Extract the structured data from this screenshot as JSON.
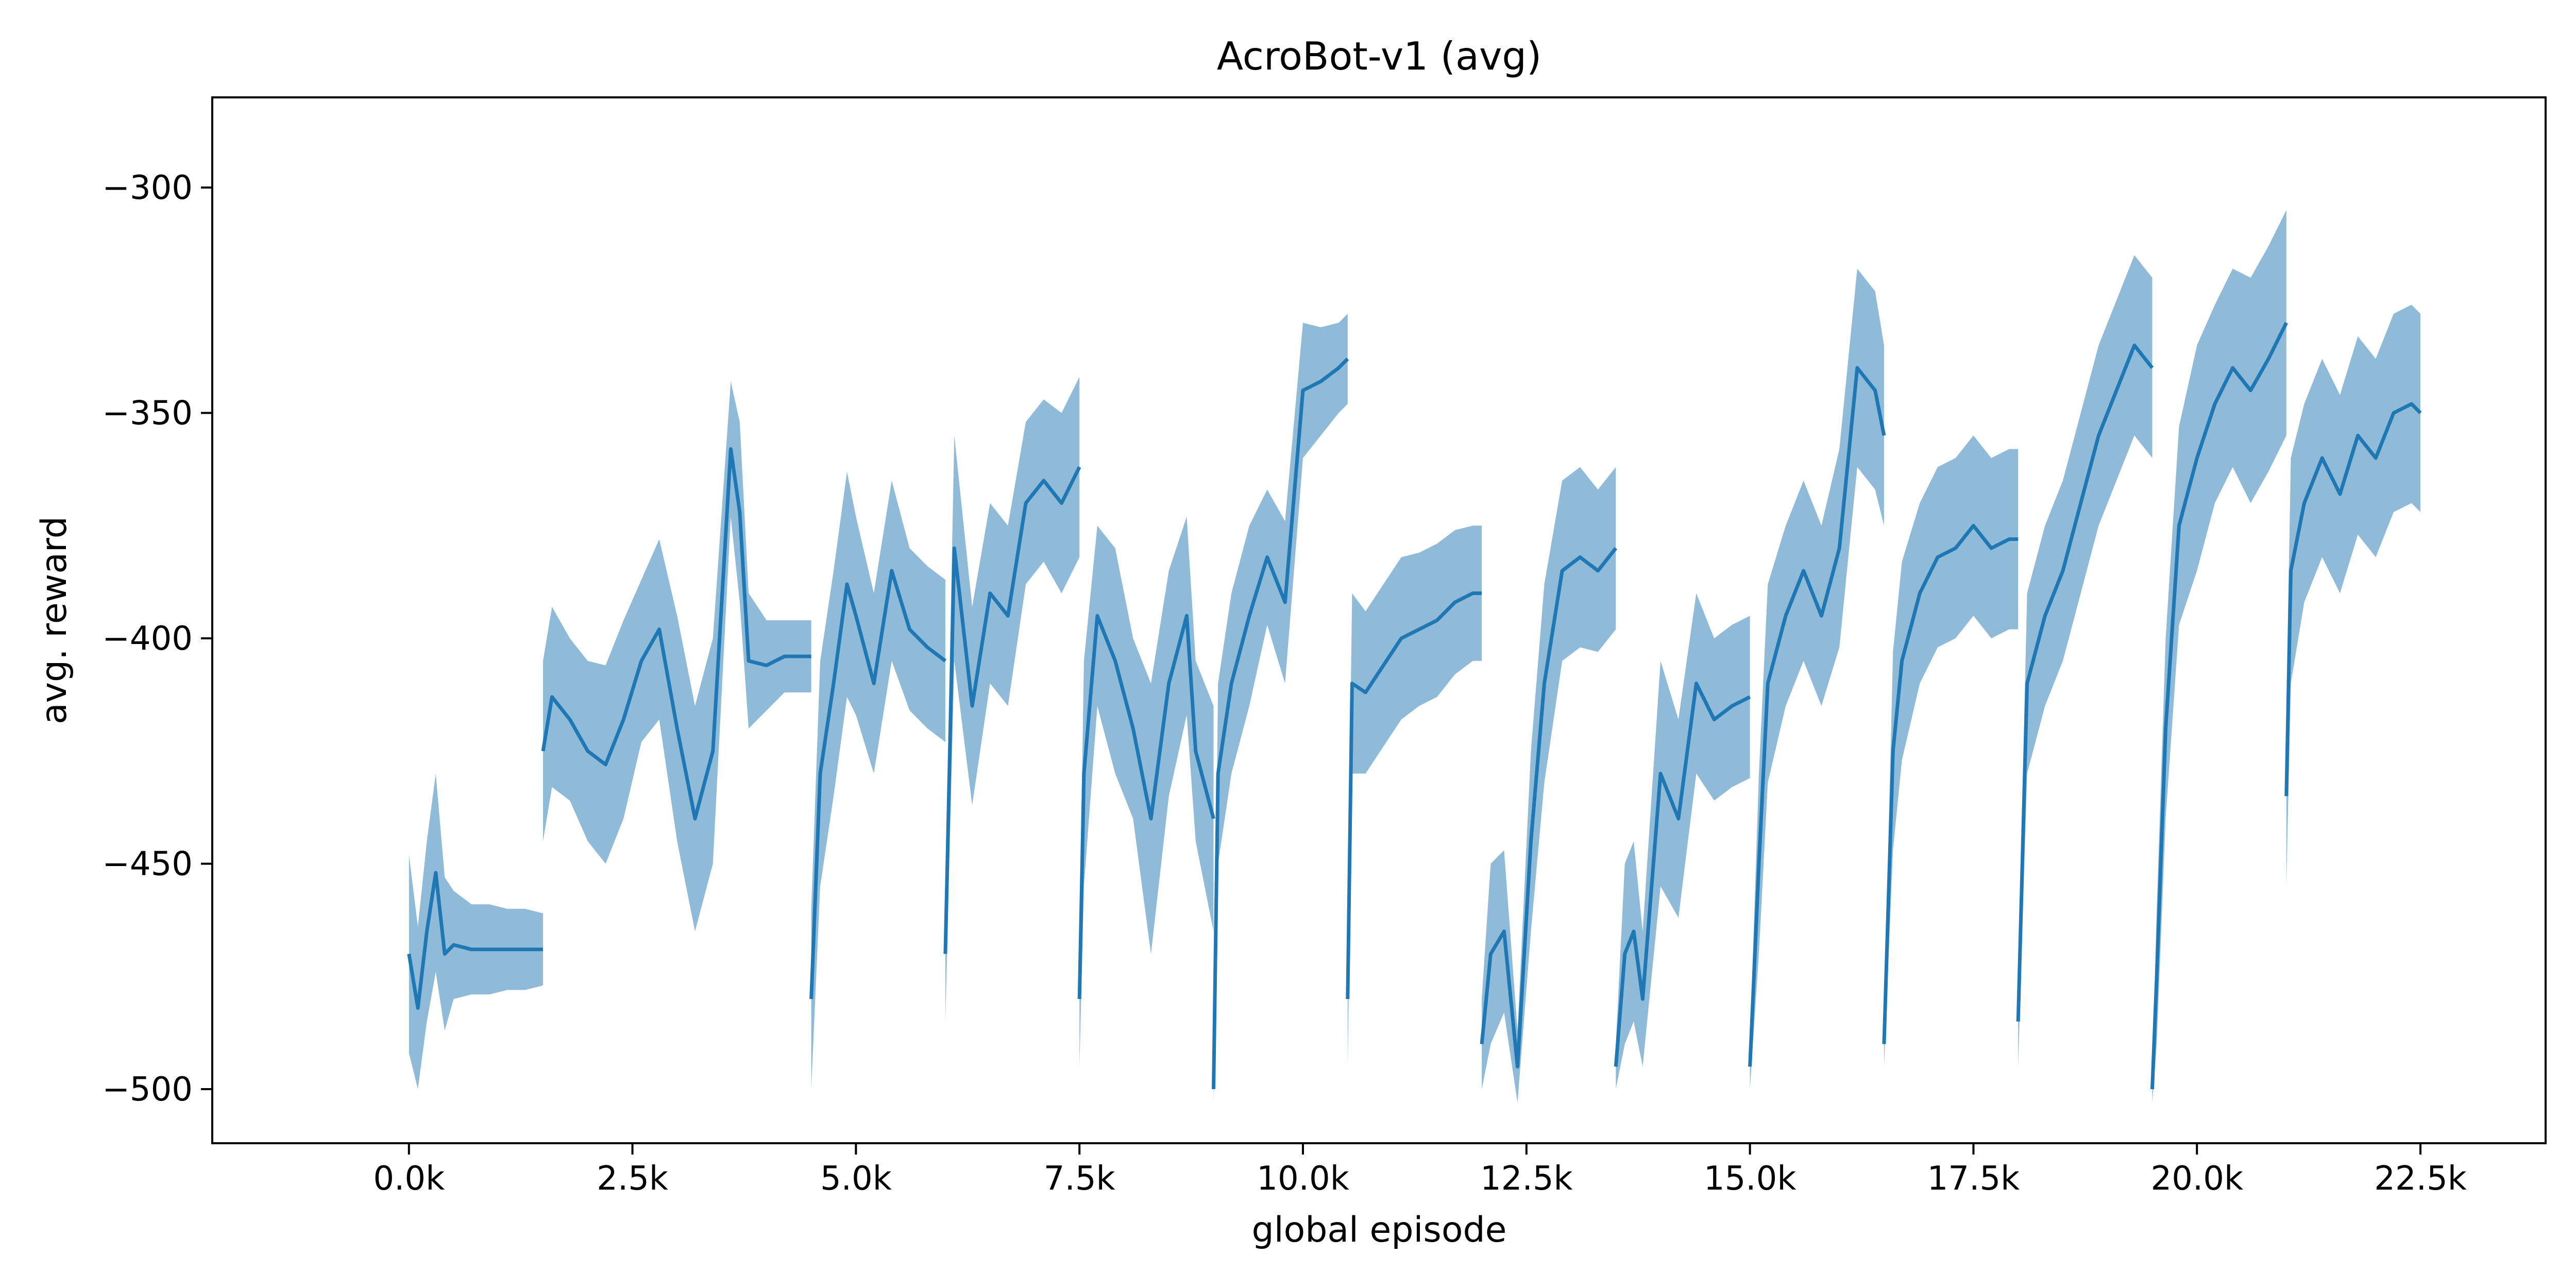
{
  "chart_data": {
    "type": "line",
    "title": "AcroBot-v1 (avg)",
    "xlabel": "global episode",
    "ylabel": "avg. reward",
    "xlim": [
      -2200,
      23900
    ],
    "ylim": [
      -512,
      -280
    ],
    "x_ticks": [
      0,
      2500,
      5000,
      7500,
      10000,
      12500,
      15000,
      17500,
      20000,
      22500
    ],
    "x_tick_labels": [
      "0.0k",
      "2.5k",
      "5.0k",
      "7.5k",
      "10.0k",
      "12.5k",
      "15.0k",
      "17.5k",
      "20.0k",
      "22.5k"
    ],
    "y_ticks": [
      -300,
      -350,
      -400,
      -450,
      -500
    ],
    "y_tick_labels": [
      "−300",
      "−350",
      "−400",
      "−450",
      "−500"
    ],
    "grid": false,
    "legend": "none",
    "colors": {
      "mean": "#1f77b4",
      "band": "#1f77b4",
      "band_opacity": 0.5
    },
    "series": [
      {
        "segments": [
          {
            "x": [
              0,
              100,
              200,
              300,
              400,
              500,
              700,
              900,
              1100,
              1300,
              1500
            ],
            "mean": [
              -470,
              -482,
              -465,
              -452,
              -470,
              -468,
              -469,
              -469,
              -469,
              -469,
              -469
            ],
            "spread": [
              22,
              18,
              20,
              22,
              17,
              12,
              10,
              10,
              9,
              9,
              8
            ]
          },
          {
            "x": [
              1500,
              1600,
              1800,
              2000,
              2200,
              2400,
              2600,
              2800,
              3000,
              3200,
              3400,
              3600,
              3700,
              3800,
              4000,
              4200,
              4400,
              4500
            ],
            "mean": [
              -425,
              -413,
              -418,
              -425,
              -428,
              -418,
              -405,
              -398,
              -420,
              -440,
              -425,
              -358,
              -372,
              -405,
              -406,
              -404,
              -404,
              -404
            ],
            "spread": [
              20,
              20,
              18,
              20,
              22,
              22,
              18,
              20,
              25,
              25,
              25,
              15,
              20,
              15,
              10,
              8,
              8,
              8
            ]
          },
          {
            "x": [
              4500,
              4600,
              4750,
              4900,
              5000,
              5200,
              5400,
              5600,
              5800,
              6000
            ],
            "mean": [
              -480,
              -430,
              -410,
              -388,
              -395,
              -410,
              -385,
              -398,
              -402,
              -405
            ],
            "spread": [
              20,
              25,
              25,
              25,
              22,
              20,
              20,
              18,
              18,
              18
            ]
          },
          {
            "x": [
              6000,
              6100,
              6300,
              6500,
              6700,
              6900,
              7100,
              7300,
              7500
            ],
            "mean": [
              -470,
              -380,
              -415,
              -390,
              -395,
              -370,
              -365,
              -370,
              -362
            ],
            "spread": [
              15,
              25,
              22,
              20,
              20,
              18,
              18,
              20,
              20
            ]
          },
          {
            "x": [
              7500,
              7550,
              7700,
              7900,
              8100,
              8300,
              8500,
              8700,
              8800,
              9000
            ],
            "mean": [
              -480,
              -430,
              -395,
              -405,
              -420,
              -440,
              -410,
              -395,
              -425,
              -440
            ],
            "spread": [
              15,
              25,
              20,
              25,
              20,
              30,
              25,
              22,
              20,
              25
            ]
          },
          {
            "x": [
              9000,
              9050,
              9200,
              9400,
              9600,
              9800,
              10000,
              10200,
              10400,
              10500
            ],
            "mean": [
              -500,
              -430,
              -410,
              -395,
              -382,
              -392,
              -345,
              -343,
              -340,
              -338
            ],
            "spread": [
              3,
              20,
              20,
              20,
              15,
              18,
              15,
              12,
              10,
              10
            ]
          },
          {
            "x": [
              10500,
              10550,
              10700,
              10900,
              11100,
              11300,
              11500,
              11700,
              11900,
              12000
            ],
            "mean": [
              -480,
              -410,
              -412,
              -406,
              -400,
              -398,
              -396,
              -392,
              -390,
              -390
            ],
            "spread": [
              15,
              20,
              18,
              18,
              18,
              17,
              17,
              16,
              15,
              15
            ]
          },
          {
            "x": [
              12000,
              12100,
              12250,
              12400,
              12550,
              12700,
              12900,
              13100,
              13300,
              13500
            ],
            "mean": [
              -490,
              -470,
              -465,
              -495,
              -445,
              -410,
              -385,
              -382,
              -385,
              -380
            ],
            "spread": [
              10,
              20,
              18,
              8,
              20,
              22,
              20,
              20,
              18,
              18
            ]
          },
          {
            "x": [
              13500,
              13600,
              13700,
              13800,
              14000,
              14200,
              14400,
              14600,
              14800,
              15000
            ],
            "mean": [
              -495,
              -470,
              -465,
              -480,
              -430,
              -440,
              -410,
              -418,
              -415,
              -413
            ],
            "spread": [
              5,
              20,
              20,
              15,
              25,
              22,
              20,
              18,
              18,
              18
            ]
          },
          {
            "x": [
              15000,
              15100,
              15200,
              15400,
              15600,
              15800,
              16000,
              16200,
              16400,
              16500
            ],
            "mean": [
              -495,
              -450,
              -410,
              -395,
              -385,
              -395,
              -380,
              -340,
              -345,
              -355
            ],
            "spread": [
              5,
              20,
              22,
              20,
              20,
              20,
              22,
              22,
              22,
              20
            ]
          },
          {
            "x": [
              16500,
              16600,
              16700,
              16900,
              17100,
              17300,
              17500,
              17700,
              17900,
              18000
            ],
            "mean": [
              -490,
              -425,
              -405,
              -390,
              -382,
              -380,
              -375,
              -380,
              -378,
              -378
            ],
            "spread": [
              5,
              22,
              22,
              20,
              20,
              20,
              20,
              20,
              20,
              20
            ]
          },
          {
            "x": [
              18000,
              18100,
              18300,
              18500,
              18700,
              18900,
              19100,
              19300,
              19500
            ],
            "mean": [
              -485,
              -410,
              -395,
              -385,
              -370,
              -355,
              -345,
              -335,
              -340
            ],
            "spread": [
              10,
              20,
              20,
              20,
              20,
              20,
              20,
              20,
              20
            ]
          },
          {
            "x": [
              19500,
              19550,
              19650,
              19800,
              20000,
              20200,
              20400,
              20600,
              20800,
              21000
            ],
            "mean": [
              -500,
              -475,
              -420,
              -375,
              -360,
              -348,
              -340,
              -345,
              -338,
              -330
            ],
            "spread": [
              3,
              15,
              20,
              22,
              25,
              22,
              22,
              25,
              25,
              25
            ]
          },
          {
            "x": [
              21000,
              21050,
              21200,
              21400,
              21600,
              21800,
              22000,
              22200,
              22400,
              22500
            ],
            "mean": [
              -435,
              -385,
              -370,
              -360,
              -368,
              -355,
              -360,
              -350,
              -348,
              -350
            ],
            "spread": [
              20,
              25,
              22,
              22,
              22,
              22,
              22,
              22,
              22,
              22
            ]
          }
        ]
      }
    ]
  }
}
